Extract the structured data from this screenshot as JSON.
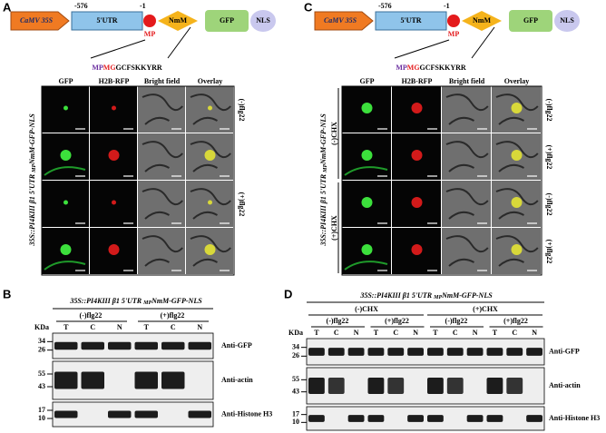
{
  "panel_a": {
    "label": "A",
    "construct": {
      "promoter": "CaMV 35S",
      "utr": "5'UTR",
      "pos_start": "-576",
      "pos_end": "-1",
      "mp": "MP",
      "nmm": "NmM",
      "gfp": "GFP",
      "nls": "NLS"
    },
    "sequence": [
      "M",
      "P",
      "MG",
      "GCFSKKYRR"
    ],
    "columns": [
      "GFP",
      "H2B-RFP",
      "Bright field",
      "Overlay"
    ],
    "row_labels": [
      "(-)flg22",
      "(+)flg22"
    ],
    "side_label": [
      "35S::PI4KIII β1 5'UTR ",
      "MP",
      "NmM-GFP-NLS"
    ]
  },
  "panel_c": {
    "label": "C",
    "construct": {
      "promoter": "CaMV 35S",
      "utr": "5'UTR",
      "pos_start": "-576",
      "pos_end": "-1",
      "mp": "MP",
      "nmm": "NmM",
      "gfp": "GFP",
      "nls": "NLS"
    },
    "sequence": [
      "M",
      "P",
      "MG",
      "GCFSKKYRR"
    ],
    "columns": [
      "GFP",
      "H2B-RFP",
      "Bright field",
      "Overlay"
    ],
    "row_labels": [
      "(-)flg22",
      "(+)flg22",
      "(-)flg22",
      "(+)flg22"
    ],
    "chx_labels": [
      "(-)CHX",
      "(+)CHX"
    ],
    "side_label": [
      "35S::PI4KIII β1 5'UTR ",
      "MP",
      "NmM-GFP-NLS"
    ]
  },
  "panel_b": {
    "label": "B",
    "title": [
      "35S::PI4KIII β1 5'UTR ",
      "MP",
      "NmM-GFP-NLS"
    ],
    "groups": [
      "(-)flg22",
      "(+)flg22"
    ],
    "lanes": [
      "T",
      "C",
      "N",
      "T",
      "C",
      "N"
    ],
    "unit": "KDa",
    "markers": [
      [
        "34",
        "26"
      ],
      [
        "55",
        "43"
      ],
      [
        "17",
        "10"
      ]
    ],
    "antibodies": [
      "Anti-GFP",
      "Anti-actin",
      "Anti-Histone H3"
    ]
  },
  "panel_d": {
    "label": "D",
    "title": [
      "35S::PI4KIII β1 5'UTR ",
      "MP",
      "NmM-GFP-NLS"
    ],
    "chx_groups": [
      "(-)CHX",
      "(+)CHX"
    ],
    "groups": [
      "(-)flg22",
      "(+)flg22",
      "(-)flg22",
      "(+)flg22"
    ],
    "lanes": [
      "T",
      "C",
      "N",
      "T",
      "C",
      "N",
      "T",
      "C",
      "N",
      "T",
      "C",
      "N"
    ],
    "unit": "KDa",
    "markers": [
      [
        "34",
        "26"
      ],
      [
        "55",
        "43"
      ],
      [
        "17",
        "10"
      ]
    ],
    "antibodies": [
      "Anti-GFP",
      "Anti-actin",
      "Anti-Histone H3"
    ]
  }
}
